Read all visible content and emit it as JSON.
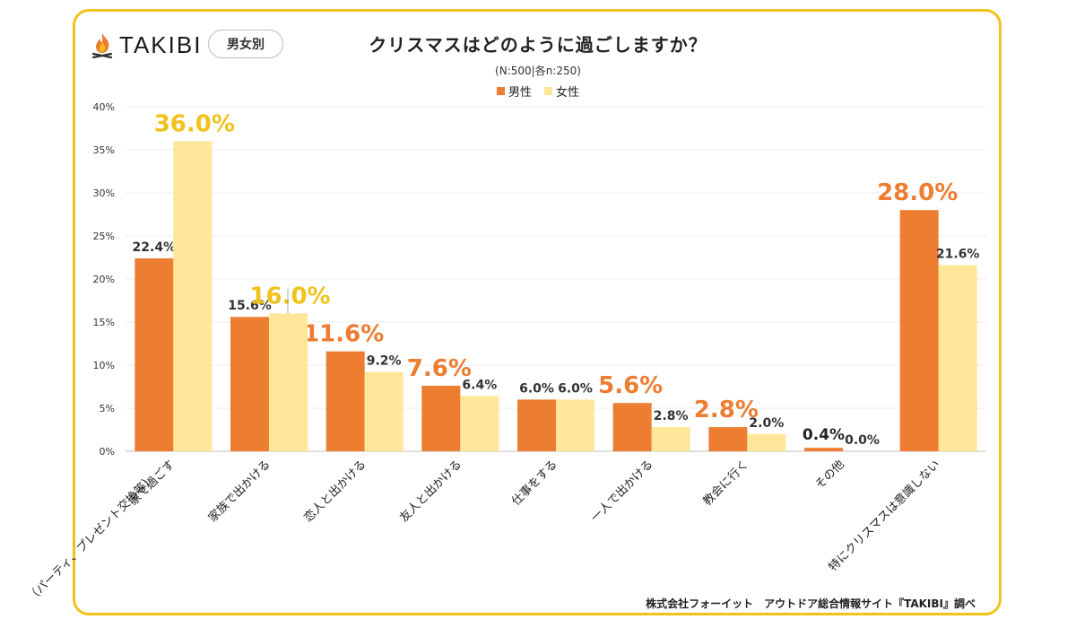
{
  "header": {
    "logo_text": "TAKIBI",
    "badge": "男女別",
    "title": "クリスマスはどのように過ごしますか？",
    "subtitle": "(N:500|各n:250)"
  },
  "colors": {
    "male": "#ED7D31",
    "female": "#FFE699",
    "highlight_gold": "#F2C21B",
    "frame": "#F2C21B"
  },
  "chart_data": {
    "type": "bar",
    "title": "クリスマスはどのように過ごしますか？",
    "ylim": [
      0,
      40
    ],
    "yticks": [
      "0%",
      "5%",
      "10%",
      "15%",
      "20%",
      "25%",
      "30%",
      "35%",
      "40%"
    ],
    "grid": true,
    "legend": "top-center",
    "categories": [
      [
        "家で過ごす",
        "（パーティ、プレゼント交換等）"
      ],
      [
        "家族で出かける"
      ],
      [
        "恋人と出かける"
      ],
      [
        "友人と出かける"
      ],
      [
        "仕事をする"
      ],
      [
        "一人で出かける"
      ],
      [
        "教会に行く"
      ],
      [
        "その他"
      ],
      [
        "特にクリスマスは意識しない"
      ]
    ],
    "series": [
      {
        "name": "男性",
        "values": [
          22.4,
          15.6,
          11.6,
          7.6,
          6.0,
          5.6,
          2.8,
          0.4,
          28.0
        ],
        "labels": [
          "22.4%",
          "15.6%",
          "11.6%",
          "7.6%",
          "6.0%",
          "5.6%",
          "2.8%",
          "0.4%",
          "28.0%"
        ]
      },
      {
        "name": "女性",
        "values": [
          36.0,
          16.0,
          9.2,
          6.4,
          6.0,
          2.8,
          2.0,
          0.0,
          21.6
        ],
        "labels": [
          "36.0%",
          "16.0%",
          "9.2%",
          "6.4%",
          "6.0%",
          "2.8%",
          "2.0%",
          "0.0%",
          "21.6%"
        ]
      }
    ],
    "highlighted_labels": [
      {
        "series": 1,
        "index": 0,
        "color": "#F2C21B"
      },
      {
        "series": 1,
        "index": 1,
        "color": "#F2C21B"
      },
      {
        "series": 0,
        "index": 2,
        "color": "#ED7D31"
      },
      {
        "series": 0,
        "index": 3,
        "color": "#ED7D31"
      },
      {
        "series": 0,
        "index": 5,
        "color": "#ED7D31"
      },
      {
        "series": 0,
        "index": 6,
        "color": "#ED7D31"
      },
      {
        "series": 0,
        "index": 8,
        "color": "#ED7D31"
      },
      {
        "series": 0,
        "index": 7,
        "color": "#222222"
      }
    ]
  },
  "footer": {
    "credit": "株式会社フォーイット　アウトドア総合情報サイト『TAKIBI』調べ"
  }
}
